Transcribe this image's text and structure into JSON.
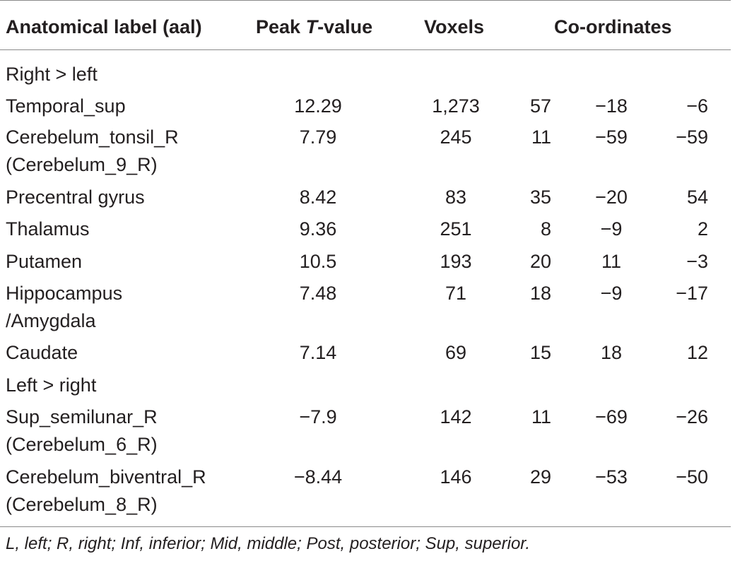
{
  "table": {
    "headers": {
      "label": "Anatomical label (aal)",
      "peak_prefix": "Peak ",
      "peak_italic": "T",
      "peak_suffix": "-value",
      "voxels": "Voxels",
      "coords": "Co-ordinates"
    },
    "sections": [
      {
        "title": "Right > left"
      },
      {
        "title": "Left > right"
      }
    ],
    "rows": [
      {
        "label1": "Temporal_sup",
        "label2": "",
        "peak": "12.29",
        "voxels": "1,273",
        "x": "57",
        "y": "−18",
        "z": "−6"
      },
      {
        "label1": "Cerebelum_tonsil_R",
        "label2": "(Cerebelum_9_R)",
        "peak": "7.79",
        "voxels": "245",
        "x": "11",
        "y": "−59",
        "z": "−59"
      },
      {
        "label1": "Precentral gyrus",
        "label2": "",
        "peak": "8.42",
        "voxels": "83",
        "x": "35",
        "y": "−20",
        "z": "54"
      },
      {
        "label1": "Thalamus",
        "label2": "",
        "peak": "9.36",
        "voxels": "251",
        "x": "8",
        "y": "−9",
        "z": "2"
      },
      {
        "label1": "Putamen",
        "label2": "",
        "peak": "10.5",
        "voxels": "193",
        "x": "20",
        "y": "11",
        "z": "−3"
      },
      {
        "label1": "Hippocampus",
        "label2": "/Amygdala",
        "peak": "7.48",
        "voxels": "71",
        "x": "18",
        "y": "−9",
        "z": "−17"
      },
      {
        "label1": "Caudate",
        "label2": "",
        "peak": "7.14",
        "voxels": "69",
        "x": "15",
        "y": "18",
        "z": "12"
      },
      {
        "label1": "Sup_semilunar_R",
        "label2": "(Cerebelum_6_R)",
        "peak": "−7.9",
        "voxels": "142",
        "x": "11",
        "y": "−69",
        "z": "−26"
      },
      {
        "label1": "Cerebelum_biventral_R",
        "label2": "(Cerebelum_8_R)",
        "peak": "−8.44",
        "voxels": "146",
        "x": "29",
        "y": "−53",
        "z": "−50"
      }
    ]
  },
  "footnote": "L, left; R, right; Inf, inferior; Mid, middle; Post, posterior; Sup, superior."
}
